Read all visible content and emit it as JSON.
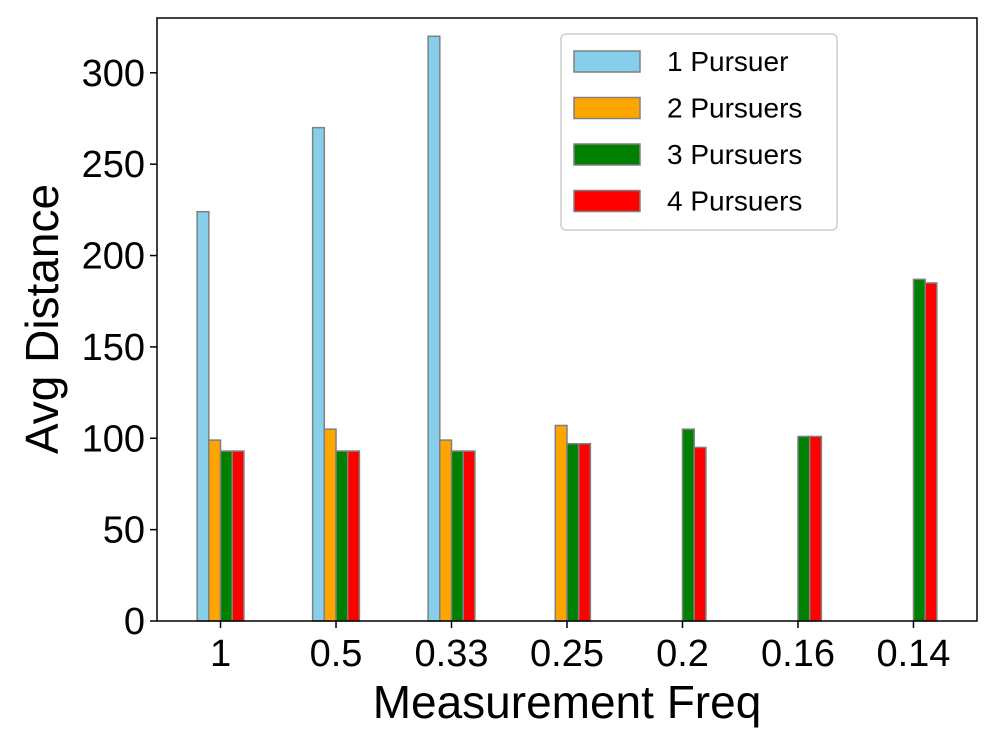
{
  "chart_data": {
    "type": "bar",
    "title": "",
    "xlabel": "Measurement Freq",
    "ylabel": "Avg Distance",
    "categories": [
      "1",
      "0.5",
      "0.33",
      "0.25",
      "0.2",
      "0.16",
      "0.14"
    ],
    "ylim": [
      0,
      330
    ],
    "yticks": [
      0,
      50,
      100,
      150,
      200,
      250,
      300
    ],
    "grid": false,
    "legend_position": "top-right",
    "bar_edge_color": "#808080",
    "series": [
      {
        "name": "1 Pursuer",
        "color": "#87CEEB",
        "values": [
          224,
          270,
          320,
          0,
          0,
          0,
          0
        ]
      },
      {
        "name": "2 Pursuers",
        "color": "#FFA500",
        "values": [
          99,
          105,
          99,
          107,
          0,
          0,
          0
        ]
      },
      {
        "name": "3 Pursuers",
        "color": "#008000",
        "values": [
          93,
          93,
          93,
          97,
          105,
          101,
          187
        ]
      },
      {
        "name": "4 Pursuers",
        "color": "#FF0000",
        "values": [
          93,
          93,
          93,
          97,
          95,
          101,
          185
        ]
      }
    ]
  }
}
